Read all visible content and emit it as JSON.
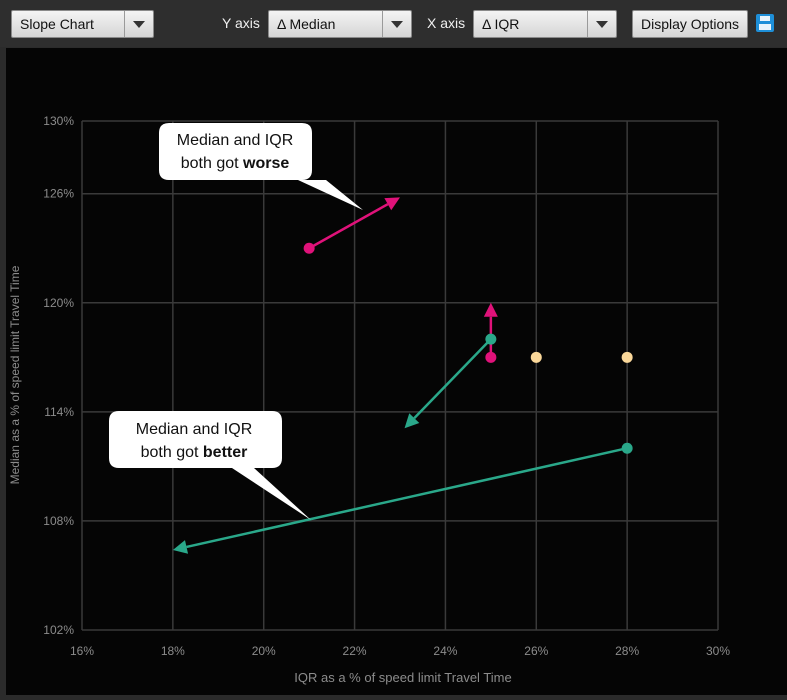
{
  "toolbar": {
    "chart_type": "Slope Chart",
    "y_axis_label": "Y axis",
    "y_axis_value": "Δ Median",
    "x_axis_label": "X axis",
    "x_axis_value": "Δ IQR",
    "display_options": "Display Options",
    "save_icon": "save-icon"
  },
  "chart_data": {
    "type": "scatter",
    "xlabel": "IQR as a % of speed limit Travel Time",
    "ylabel": "Median as a % of speed limit Travel Time",
    "xlim": [
      16,
      30
    ],
    "ylim": [
      102,
      130
    ],
    "x_ticks": [
      "16%",
      "18%",
      "20%",
      "22%",
      "24%",
      "26%",
      "28%",
      "30%"
    ],
    "y_ticks": [
      "102%",
      "108%",
      "114%",
      "120%",
      "126%",
      "130%"
    ],
    "y_tick_values": [
      102,
      108,
      114,
      120,
      126,
      130
    ],
    "grid": true,
    "colors": {
      "worse": "#e0127a",
      "better": "#2aa88a",
      "neutral": "#fbd89a",
      "grid": "#3a3a3a",
      "axis_text": "#8c8c8c"
    },
    "segments": [
      {
        "group": "worse",
        "from": [
          21,
          123
        ],
        "to": [
          23,
          125.8
        ]
      },
      {
        "group": "worse",
        "from": [
          25,
          117
        ],
        "to": [
          25,
          120
        ]
      },
      {
        "group": "better",
        "from": [
          25,
          118
        ],
        "to": [
          23.1,
          113.1
        ]
      },
      {
        "group": "better",
        "from": [
          28,
          112
        ],
        "to": [
          18,
          106.4
        ]
      }
    ],
    "points": [
      {
        "group": "neutral",
        "x": 26,
        "y": 117
      },
      {
        "group": "neutral",
        "x": 28,
        "y": 117
      }
    ],
    "annotations": [
      {
        "lines": [
          "Median and IQR",
          "both got "
        ],
        "bold": "worse"
      },
      {
        "lines": [
          "Median and IQR",
          "both got "
        ],
        "bold": "better"
      }
    ]
  }
}
